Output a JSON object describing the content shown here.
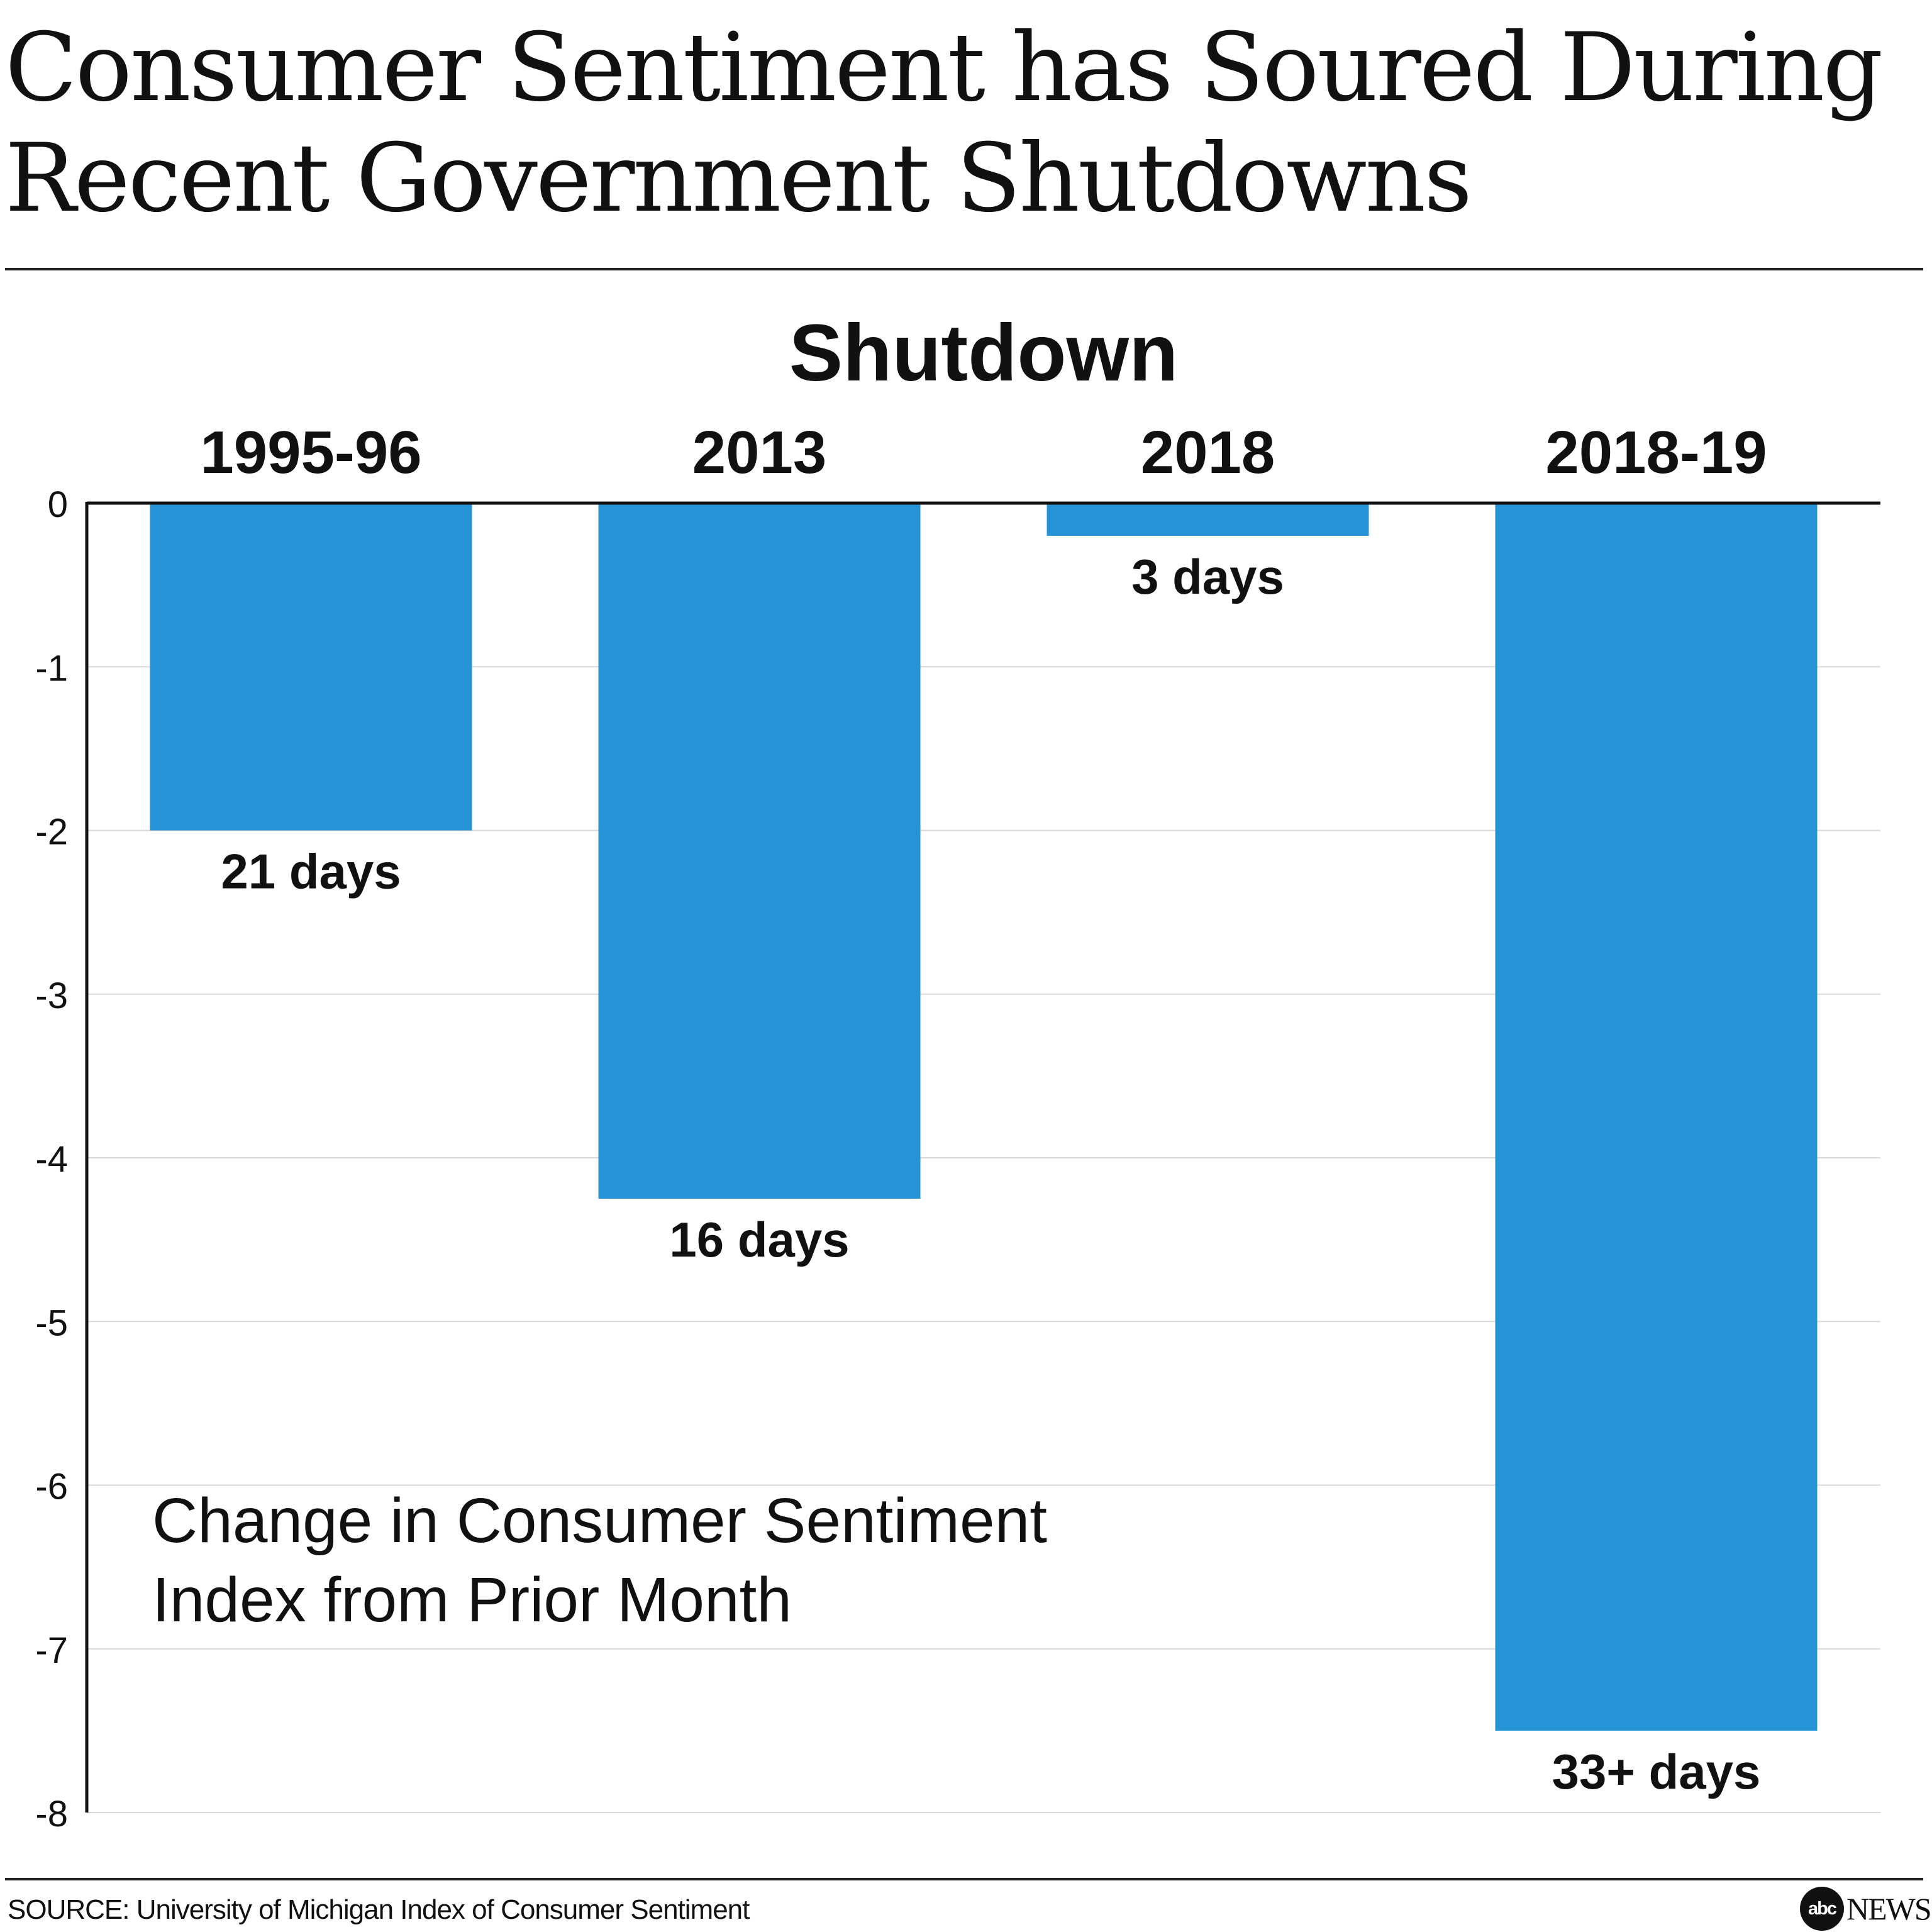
{
  "header": {
    "title_line1": "Consumer Sentiment has Soured During",
    "title_line2": "Recent Government Shutdowns"
  },
  "footer": {
    "source": "SOURCE: University of Michigan Index of Consumer Sentiment",
    "logo_mark": "abc",
    "logo_word": "NEWS"
  },
  "chart_data": {
    "type": "bar",
    "title": "Shutdown",
    "annotation": [
      "Change in Consumer Sentiment",
      "Index from Prior Month"
    ],
    "categories": [
      "1995-96",
      "2013",
      "2018",
      "2018-19"
    ],
    "values": [
      -2.0,
      -4.25,
      -0.2,
      -7.5
    ],
    "data_labels": [
      "21 days",
      "16 days",
      "3 days",
      "33+ days"
    ],
    "ylim": [
      -8,
      0
    ],
    "yticks": [
      0,
      -1,
      -2,
      -3,
      -4,
      -5,
      -6,
      -7,
      -8
    ],
    "grid": true,
    "xlabel": "",
    "ylabel": "",
    "colors": {
      "bar": "#2693D6",
      "grid": "#D9D9D9",
      "axis": "#111111",
      "text": "#111111"
    }
  }
}
